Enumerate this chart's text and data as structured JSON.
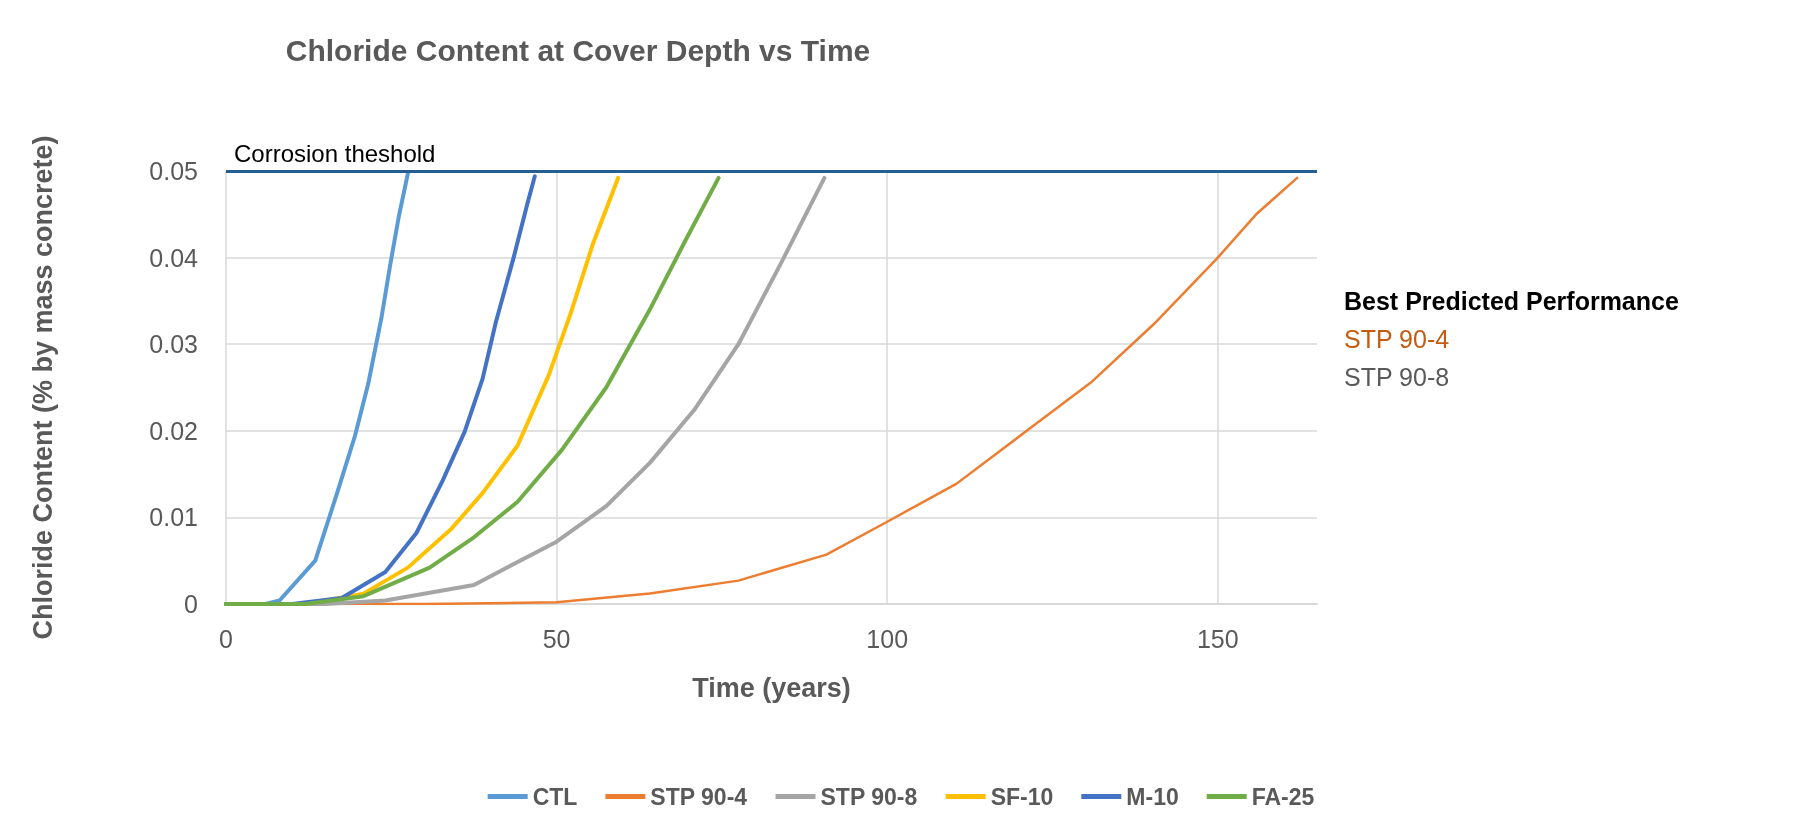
{
  "chart_data": {
    "type": "line",
    "title": "Chloride Content at Cover Depth vs Time",
    "xlabel": "Time (years)",
    "ylabel": "Chloride Content (% by mass concrete)",
    "xlim": [
      0,
      165
    ],
    "xticks": [
      0,
      50,
      100,
      150
    ],
    "ylim": [
      0,
      0.05
    ],
    "yticks": [
      0,
      0.01,
      0.02,
      0.03,
      0.04,
      0.05
    ],
    "grid": true,
    "legend": "bottom",
    "marker": "none",
    "line_style": "solid",
    "ref_lines": [
      {
        "axis": "y",
        "value": 0.05,
        "label": "Corrosion theshold",
        "color": "#255e91"
      }
    ],
    "annotations": [
      "Best Predicted Performance",
      "STP 90-4",
      "STP 90-8"
    ],
    "series": [
      {
        "name": "CTL",
        "color": "#5b9bd5",
        "x": [
          0,
          6,
          8.1,
          13.5,
          16.8,
          19.5,
          21.5,
          23.5,
          24.8,
          26.1,
          27.5
        ],
        "values": [
          0,
          0,
          0.0004,
          0.005,
          0.0128,
          0.0194,
          0.0254,
          0.033,
          0.039,
          0.0446,
          0.0497
        ]
      },
      {
        "name": "STP 90-4",
        "color": "#ed7d31",
        "x": [
          0,
          30,
          50,
          64.1,
          77.5,
          90.8,
          100,
          110.5,
          121.1,
          131,
          140.3,
          150,
          155.8,
          162
        ],
        "values": [
          0,
          0,
          0.0002,
          0.0012,
          0.0027,
          0.0057,
          0.0095,
          0.0139,
          0.02,
          0.0257,
          0.0323,
          0.04,
          0.045,
          0.0492
        ]
      },
      {
        "name": "STP 90-8",
        "color": "#a5a5a5",
        "x": [
          0,
          15,
          24.1,
          37.5,
          50,
          57.5,
          64.1,
          70.8,
          77.5,
          84.1,
          90.5
        ],
        "values": [
          0,
          0,
          0.0004,
          0.0022,
          0.0072,
          0.0113,
          0.0163,
          0.0224,
          0.03,
          0.0396,
          0.0492
        ]
      },
      {
        "name": "SF-10",
        "color": "#ffc000",
        "x": [
          0,
          12,
          20.8,
          27.5,
          34.1,
          38.8,
          44.1,
          48.8,
          52.1,
          55.5,
          59.3
        ],
        "values": [
          0,
          0,
          0.0012,
          0.0042,
          0.0087,
          0.0128,
          0.0183,
          0.0264,
          0.0335,
          0.0416,
          0.0492
        ]
      },
      {
        "name": "M-10",
        "color": "#4472c4",
        "x": [
          0,
          10,
          17.5,
          24.1,
          28.8,
          32.8,
          36.1,
          38.8,
          40.8,
          43.5,
          45.5,
          46.7
        ],
        "values": [
          0,
          0,
          0.0007,
          0.0037,
          0.0082,
          0.0143,
          0.0199,
          0.026,
          0.0325,
          0.04,
          0.046,
          0.0494
        ]
      },
      {
        "name": "FA-25",
        "color": "#70ad47",
        "x": [
          0,
          12,
          20.8,
          30.8,
          37.5,
          44.1,
          50.8,
          57.5,
          64.1,
          69.5,
          74.5
        ],
        "values": [
          0,
          0,
          0.0009,
          0.0042,
          0.0077,
          0.0118,
          0.0178,
          0.025,
          0.034,
          0.042,
          0.0492
        ]
      }
    ]
  }
}
